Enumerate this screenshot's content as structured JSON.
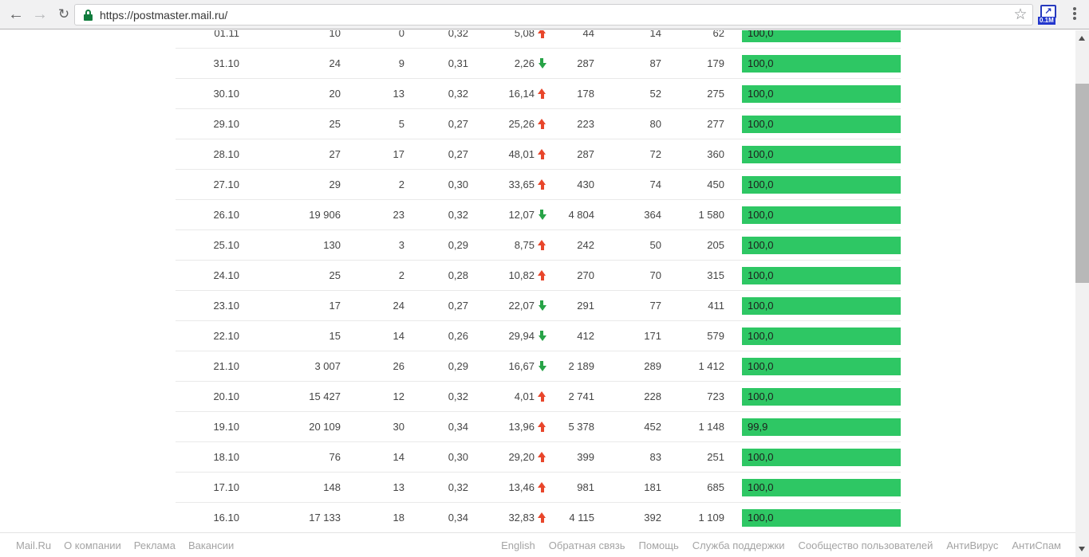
{
  "browser": {
    "url": "https://postmaster.mail.ru/",
    "extension_badge": "0.1M",
    "back_glyph": "←",
    "forward_glyph": "→",
    "refresh_glyph": "↻",
    "star_glyph": "☆",
    "ext_arrow_glyph": "↗"
  },
  "table": {
    "rows": [
      {
        "date": "01.11",
        "col1": "10",
        "col2": "0",
        "col3": "0,32",
        "pct": "5,08",
        "trend": "up",
        "col5": "44",
        "col6": "14",
        "col7": "62",
        "delivery": "100,0",
        "delivery_pct": 100
      },
      {
        "date": "31.10",
        "col1": "24",
        "col2": "9",
        "col3": "0,31",
        "pct": "2,26",
        "trend": "down",
        "col5": "287",
        "col6": "87",
        "col7": "179",
        "delivery": "100,0",
        "delivery_pct": 100
      },
      {
        "date": "30.10",
        "col1": "20",
        "col2": "13",
        "col3": "0,32",
        "pct": "16,14",
        "trend": "up",
        "col5": "178",
        "col6": "52",
        "col7": "275",
        "delivery": "100,0",
        "delivery_pct": 100
      },
      {
        "date": "29.10",
        "col1": "25",
        "col2": "5",
        "col3": "0,27",
        "pct": "25,26",
        "trend": "up",
        "col5": "223",
        "col6": "80",
        "col7": "277",
        "delivery": "100,0",
        "delivery_pct": 100
      },
      {
        "date": "28.10",
        "col1": "27",
        "col2": "17",
        "col3": "0,27",
        "pct": "48,01",
        "trend": "up",
        "col5": "287",
        "col6": "72",
        "col7": "360",
        "delivery": "100,0",
        "delivery_pct": 100
      },
      {
        "date": "27.10",
        "col1": "29",
        "col2": "2",
        "col3": "0,30",
        "pct": "33,65",
        "trend": "up",
        "col5": "430",
        "col6": "74",
        "col7": "450",
        "delivery": "100,0",
        "delivery_pct": 100
      },
      {
        "date": "26.10",
        "col1": "19 906",
        "col2": "23",
        "col3": "0,32",
        "pct": "12,07",
        "trend": "down",
        "col5": "4 804",
        "col6": "364",
        "col7": "1 580",
        "delivery": "100,0",
        "delivery_pct": 100
      },
      {
        "date": "25.10",
        "col1": "130",
        "col2": "3",
        "col3": "0,29",
        "pct": "8,75",
        "trend": "up",
        "col5": "242",
        "col6": "50",
        "col7": "205",
        "delivery": "100,0",
        "delivery_pct": 100
      },
      {
        "date": "24.10",
        "col1": "25",
        "col2": "2",
        "col3": "0,28",
        "pct": "10,82",
        "trend": "up",
        "col5": "270",
        "col6": "70",
        "col7": "315",
        "delivery": "100,0",
        "delivery_pct": 100
      },
      {
        "date": "23.10",
        "col1": "17",
        "col2": "24",
        "col3": "0,27",
        "pct": "22,07",
        "trend": "down",
        "col5": "291",
        "col6": "77",
        "col7": "411",
        "delivery": "100,0",
        "delivery_pct": 100
      },
      {
        "date": "22.10",
        "col1": "15",
        "col2": "14",
        "col3": "0,26",
        "pct": "29,94",
        "trend": "down",
        "col5": "412",
        "col6": "171",
        "col7": "579",
        "delivery": "100,0",
        "delivery_pct": 100
      },
      {
        "date": "21.10",
        "col1": "3 007",
        "col2": "26",
        "col3": "0,29",
        "pct": "16,67",
        "trend": "down",
        "col5": "2 189",
        "col6": "289",
        "col7": "1 412",
        "delivery": "100,0",
        "delivery_pct": 100
      },
      {
        "date": "20.10",
        "col1": "15 427",
        "col2": "12",
        "col3": "0,32",
        "pct": "4,01",
        "trend": "up",
        "col5": "2 741",
        "col6": "228",
        "col7": "723",
        "delivery": "100,0",
        "delivery_pct": 100
      },
      {
        "date": "19.10",
        "col1": "20 109",
        "col2": "30",
        "col3": "0,34",
        "pct": "13,96",
        "trend": "up",
        "col5": "5 378",
        "col6": "452",
        "col7": "1 148",
        "delivery": "99,9",
        "delivery_pct": 99.9
      },
      {
        "date": "18.10",
        "col1": "76",
        "col2": "14",
        "col3": "0,30",
        "pct": "29,20",
        "trend": "up",
        "col5": "399",
        "col6": "83",
        "col7": "251",
        "delivery": "100,0",
        "delivery_pct": 100
      },
      {
        "date": "17.10",
        "col1": "148",
        "col2": "13",
        "col3": "0,32",
        "pct": "13,46",
        "trend": "up",
        "col5": "981",
        "col6": "181",
        "col7": "685",
        "delivery": "100,0",
        "delivery_pct": 100
      },
      {
        "date": "16.10",
        "col1": "17 133",
        "col2": "18",
        "col3": "0,34",
        "pct": "32,83",
        "trend": "up",
        "col5": "4 115",
        "col6": "392",
        "col7": "1 109",
        "delivery": "100,0",
        "delivery_pct": 100
      }
    ]
  },
  "footer": {
    "left_links": [
      "Mail.Ru",
      "О компании",
      "Реклама",
      "Вакансии"
    ],
    "right_links": [
      "English",
      "Обратная связь",
      "Помощь",
      "Служба поддержки",
      "Сообщество пользователей",
      "АнтиВирус",
      "АнтиСпам"
    ]
  },
  "colors": {
    "delivery_bar_green": "#2ec764",
    "trend_up_red": "#e8462b",
    "trend_down_green": "#27a347",
    "toolbar_bg": "#f1f1f2",
    "lock_green": "#117c3d"
  }
}
